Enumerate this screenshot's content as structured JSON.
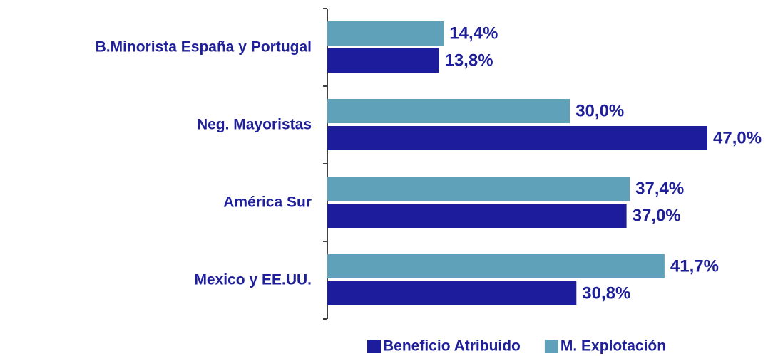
{
  "chart_data": {
    "type": "barh",
    "categories": [
      "B.Minorista España y Portugal",
      "Neg. Mayoristas",
      "América Sur",
      "Mexico y EE.UU."
    ],
    "series": [
      {
        "name": "Beneficio Atribuido",
        "color": "#1c1c9c",
        "values": [
          13.8,
          47.0,
          37.0,
          30.8
        ],
        "value_labels": [
          "13,8%",
          "47,0%",
          "37,0%",
          "30,8%"
        ]
      },
      {
        "name": "M. Explotación",
        "color": "#5fa1b9",
        "values": [
          14.4,
          30.0,
          37.4,
          41.7
        ],
        "value_labels": [
          "14,4%",
          "30,0%",
          "37,4%",
          "41,7%"
        ]
      }
    ],
    "legend": "bottom"
  }
}
